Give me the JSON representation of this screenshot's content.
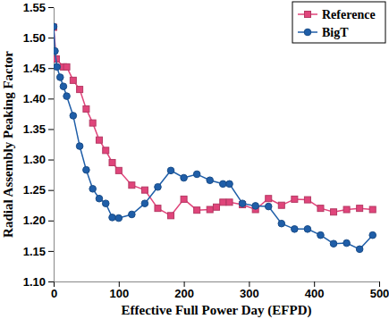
{
  "chart_data": {
    "type": "line",
    "x_label": "Effective Full Power Day (EFPD)",
    "y_label": "Radial Assembly Peaking Factor",
    "xlim": [
      0,
      500
    ],
    "xticks": [
      0,
      100,
      200,
      300,
      400,
      500
    ],
    "ylim": [
      1.1,
      1.55
    ],
    "yticks": [
      {
        "value": 1.1,
        "label": "1.10"
      },
      1.15,
      {
        "value": 1.2,
        "label": "1.20"
      },
      1.25,
      {
        "value": 1.3,
        "label": "1.30"
      },
      1.35,
      {
        "value": 1.4,
        "label": "1.40"
      },
      1.45,
      {
        "value": 1.5,
        "label": "1.50"
      },
      1.55
    ],
    "grid": false,
    "legend": "top-right",
    "series": [
      {
        "name": "Reference",
        "color": "#e0457b",
        "marker": "square",
        "x": [
          0,
          4,
          15,
          20,
          30,
          40,
          50,
          60,
          70,
          80,
          90,
          100,
          120,
          140,
          160,
          180,
          200,
          220,
          240,
          250,
          260,
          270,
          290,
          310,
          330,
          350,
          370,
          390,
          410,
          430,
          450,
          470,
          490
        ],
        "values": [
          1.517,
          1.465,
          1.452,
          1.452,
          1.43,
          1.415,
          1.383,
          1.36,
          1.332,
          1.315,
          1.295,
          1.282,
          1.258,
          1.25,
          1.22,
          1.208,
          1.235,
          1.217,
          1.218,
          1.222,
          1.23,
          1.23,
          1.226,
          1.218,
          1.236,
          1.225,
          1.235,
          1.234,
          1.22,
          1.214,
          1.218,
          1.22,
          1.218
        ]
      },
      {
        "name": "BigT",
        "color": "#1f5ea8",
        "marker": "circle",
        "x": [
          0,
          2,
          5,
          10,
          15,
          20,
          30,
          40,
          50,
          60,
          70,
          80,
          90,
          100,
          120,
          140,
          160,
          180,
          200,
          220,
          240,
          260,
          270,
          290,
          310,
          330,
          350,
          370,
          390,
          410,
          430,
          450,
          470,
          490
        ],
        "values": [
          1.518,
          1.478,
          1.452,
          1.435,
          1.42,
          1.404,
          1.372,
          1.322,
          1.283,
          1.252,
          1.236,
          1.228,
          1.205,
          1.204,
          1.21,
          1.228,
          1.255,
          1.282,
          1.27,
          1.276,
          1.266,
          1.26,
          1.26,
          1.228,
          1.224,
          1.223,
          1.195,
          1.186,
          1.186,
          1.176,
          1.162,
          1.163,
          1.153,
          1.176
        ]
      }
    ]
  }
}
